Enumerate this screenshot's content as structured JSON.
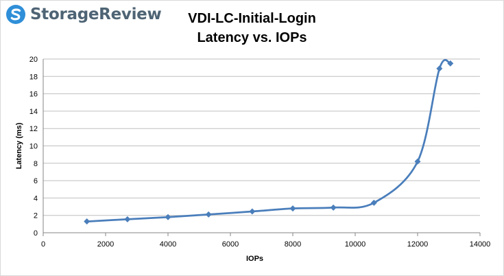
{
  "brand": {
    "name": "StorageReview",
    "color": "#4e6475",
    "logo_icon": "storagereview-s-icon"
  },
  "chart_data": {
    "type": "line",
    "title": "VDI-LC-Initial-Login",
    "subtitle": "Latency vs. IOPs",
    "xlabel": "IOPs",
    "ylabel": "Latency (ms)",
    "xlim": [
      0,
      14000
    ],
    "ylim": [
      0,
      20
    ],
    "x_ticks": [
      0,
      2000,
      4000,
      6000,
      8000,
      10000,
      12000,
      14000
    ],
    "y_ticks": [
      0,
      2,
      4,
      6,
      8,
      10,
      12,
      14,
      16,
      18,
      20
    ],
    "grid": true,
    "legend": "none",
    "marker": "diamond",
    "smooth": true,
    "series": [
      {
        "color": "#4a7ebb",
        "x": [
          1400,
          2700,
          4000,
          5300,
          6700,
          8000,
          9300,
          10600,
          12000,
          12700,
          13050
        ],
        "y": [
          1.3,
          1.55,
          1.8,
          2.1,
          2.45,
          2.8,
          2.9,
          3.45,
          8.2,
          18.9,
          19.5
        ]
      }
    ]
  }
}
